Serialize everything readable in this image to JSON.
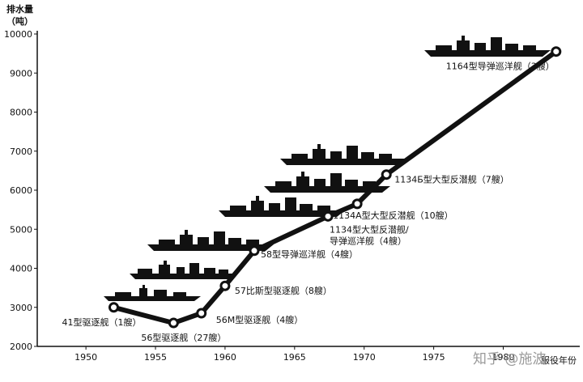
{
  "chart_data": {
    "type": "line",
    "title": "",
    "ylabel_lines": [
      "排水量",
      "（吨）"
    ],
    "xlabel": "服役年份",
    "xlim": [
      1946.5,
      1985.5
    ],
    "ylim": [
      2000,
      10000
    ],
    "x_ticks": [
      1950,
      1955,
      1960,
      1965,
      1970,
      1975,
      1980
    ],
    "y_ticks": [
      2000,
      3000,
      4000,
      5000,
      6000,
      7000,
      8000,
      9000,
      10000
    ],
    "grid": false,
    "series": [
      {
        "points": [
          {
            "x": 1952.0,
            "y": 3000,
            "label": "41型驱逐舰（1艘）"
          },
          {
            "x": 1956.3,
            "y": 2600,
            "label": "56型驱逐舰（27艘）"
          },
          {
            "x": 1958.3,
            "y": 2850,
            "label": "56M型驱逐舰（4艘）"
          },
          {
            "x": 1960.0,
            "y": 3550,
            "label": "57比斯型驱逐舰（8艘）"
          },
          {
            "x": 1962.1,
            "y": 4450,
            "label": "58型导弹巡洋舰（4艘）"
          },
          {
            "x": 1967.4,
            "y": 5330,
            "label": "1134型大型反潜舰/|导弹巡洋舰（4艘）"
          },
          {
            "x": 1969.5,
            "y": 5650,
            "label": "1134A型大型反潜舰（10艘）"
          },
          {
            "x": 1971.6,
            "y": 6400,
            "label": "1134Б型大型反潜舰（7艘）"
          },
          {
            "x": 1983.8,
            "y": 9550,
            "label": "1164型导弹巡洋舰（3艘）"
          }
        ]
      }
    ]
  },
  "watermark": "知乎 @施波"
}
